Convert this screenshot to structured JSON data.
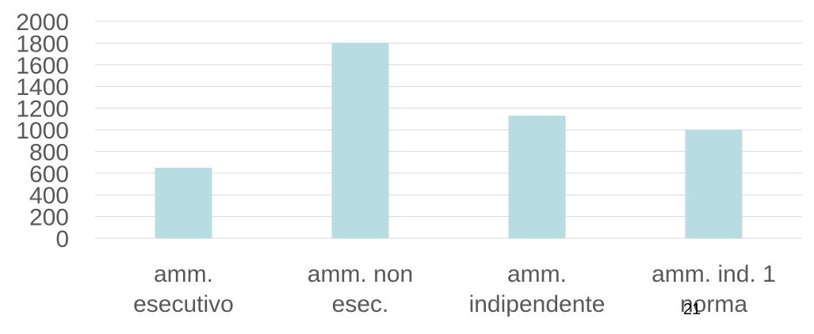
{
  "chart_data": {
    "type": "bar",
    "categories": [
      [
        "amm.",
        "esecutivo"
      ],
      [
        "amm. non",
        "esec."
      ],
      [
        "amm.",
        "indipendente"
      ],
      [
        "amm. ind. 1",
        "norma"
      ]
    ],
    "values": [
      650,
      1800,
      1130,
      1000
    ],
    "ylim": [
      0,
      2000
    ],
    "yticks": [
      "0",
      "200",
      "400",
      "600",
      "800",
      "1000",
      "1200",
      "1400",
      "1600",
      "1800",
      "2000"
    ],
    "title": "",
    "xlabel": "",
    "ylabel": "",
    "grid": true,
    "legend": "none",
    "bar_color": "#b8dde1",
    "grid_color": "#d9d9d9",
    "text_color": "#595959"
  },
  "page_number": "21"
}
